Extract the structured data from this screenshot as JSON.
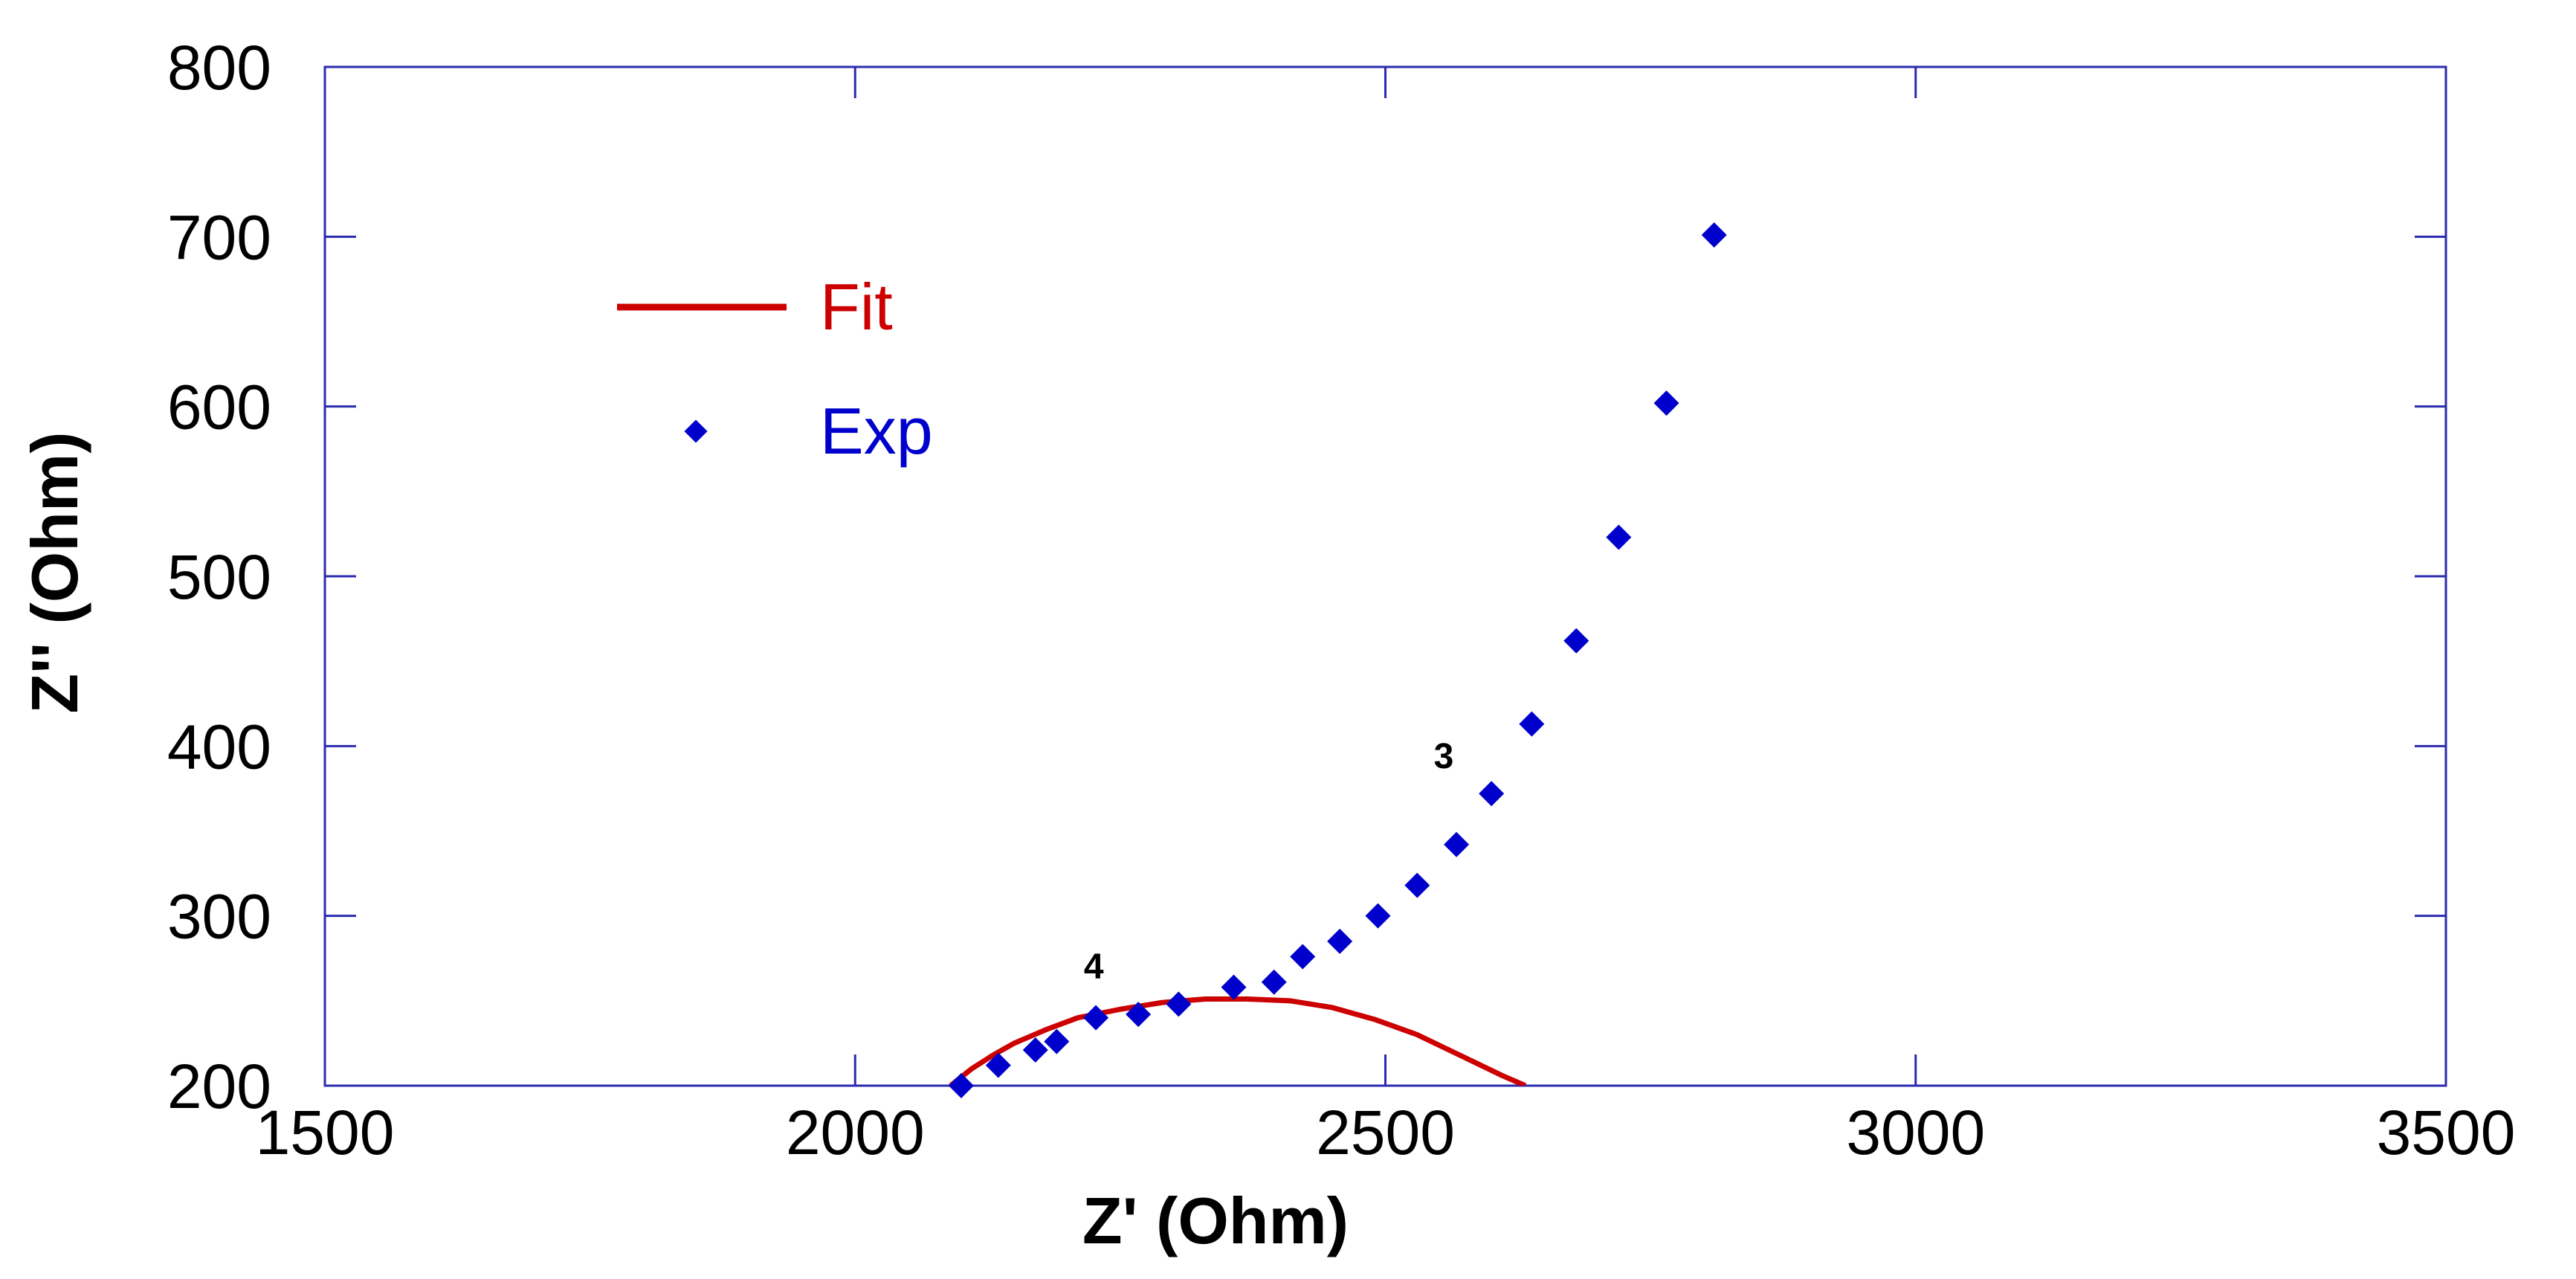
{
  "chart_data": {
    "type": "scatter",
    "title": "",
    "xlabel": "Z' (Ohm)",
    "ylabel": "Z'' (Ohm)",
    "xlim": [
      1500,
      3500
    ],
    "ylim": [
      200,
      800
    ],
    "xticks": [
      1500,
      2000,
      2500,
      3000,
      3500
    ],
    "yticks": [
      200,
      300,
      400,
      500,
      600,
      700,
      800
    ],
    "x_tick_labels": [
      "1500",
      "2000",
      "2500",
      "3000",
      "3500"
    ],
    "y_tick_labels": [
      "200",
      "300",
      "400",
      "500",
      "600",
      "700",
      "800"
    ],
    "grid": false,
    "legend_position": "top-left",
    "series": [
      {
        "name": "Fit",
        "kind": "line",
        "color": "#cc0000",
        "x": [
          2090,
          2110,
          2130,
          2150,
          2180,
          2210,
          2250,
          2290,
          2330,
          2370,
          2410,
          2450,
          2490,
          2530,
          2570,
          2610,
          2632
        ],
        "y": [
          200,
          210,
          218,
          225,
          233,
          240,
          245,
          249,
          251,
          251,
          250,
          246,
          239,
          230,
          218,
          206,
          200
        ]
      },
      {
        "name": "Exp",
        "kind": "scatter",
        "marker": "diamond",
        "color": "#0000cc",
        "x": [
          2100,
          2135,
          2170,
          2190,
          2227,
          2267,
          2305,
          2357,
          2395,
          2422,
          2457,
          2493,
          2530,
          2567,
          2600,
          2638,
          2680,
          2720,
          2765,
          2810
        ],
        "y": [
          200,
          212,
          221,
          226,
          240,
          242,
          248,
          258,
          261,
          276,
          285,
          300,
          318,
          342,
          372,
          413,
          462,
          523,
          602,
          701
        ]
      }
    ],
    "annotations": [
      {
        "text": "4",
        "x": 2225,
        "y": 263
      },
      {
        "text": "3",
        "x": 2555,
        "y": 387
      }
    ]
  }
}
